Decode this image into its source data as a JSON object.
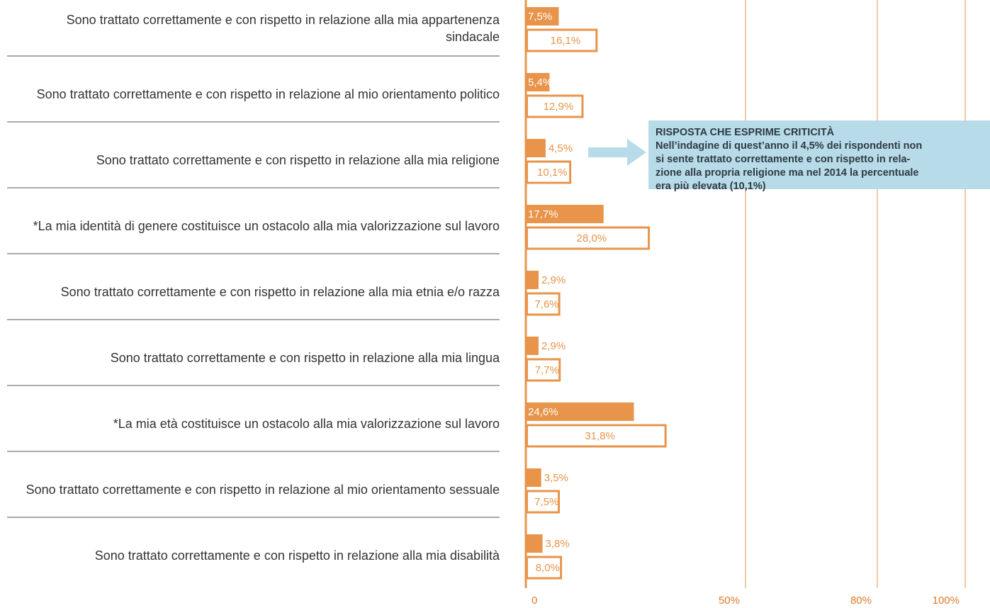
{
  "chart_data": {
    "type": "bar",
    "orientation": "horizontal",
    "categories": [
      "Sono trattato correttamente e con rispetto in relazione alla mia appartenenza sindacale",
      "Sono trattato correttamente e con rispetto in relazione al mio orientamento politico",
      "Sono trattato correttamente e con rispetto in relazione alla mia religione",
      "*La mia identità di genere costituisce un ostacolo alla mia valorizzazione sul lavoro",
      "Sono trattato correttamente e con rispetto in relazione alla mia etnia e/o razza",
      "Sono trattato correttamente e con rispetto in relazione alla mia lingua",
      "*La mia età costituisce un ostacolo alla mia valorizzazione sul lavoro",
      "Sono trattato correttamente e con rispetto in relazione al mio orientamento sessuale",
      "Sono trattato correttamente e con rispetto in relazione alla mia disabilità"
    ],
    "series": [
      {
        "color": "#e8944a",
        "style": "filled",
        "values": [
          7.5,
          5.4,
          4.5,
          17.7,
          2.9,
          2.9,
          24.6,
          3.5,
          3.8
        ],
        "value_labels": [
          "7,5%",
          "5,4%",
          "4,5%",
          "17,7%",
          "2,9%",
          "2,9%",
          "24,6%",
          "3,5%",
          "3,8%"
        ]
      },
      {
        "color": "#e8944a",
        "style": "outline",
        "values": [
          16.1,
          12.9,
          10.1,
          28.0,
          7.6,
          7.7,
          31.8,
          7.5,
          8.0
        ],
        "value_labels": [
          "16,1%",
          "12,9%",
          "10,1%",
          "28,0%",
          "7,6%",
          "7,7%",
          "31,8%",
          "7,5%",
          "8,0%"
        ]
      }
    ],
    "xlim": [
      0,
      100
    ],
    "xticks": [
      0,
      {
        "value": 50,
        "label": "50%"
      },
      {
        "value": 80,
        "label": "80%"
      },
      {
        "value": 100,
        "label": "100%"
      }
    ],
    "grid": true,
    "annotation": {
      "title": "RISPOSTA CHE ESPRIME CRITICITÀ",
      "lines": [
        "Nell’indagine di quest’anno il 4,5% dei rispondenti non",
        "si sente trattato correttamente e con rispetto in rela-",
        "zione alla propria religione ma nel 2014 la percentuale",
        "era più elevata (10,1%)"
      ]
    }
  }
}
